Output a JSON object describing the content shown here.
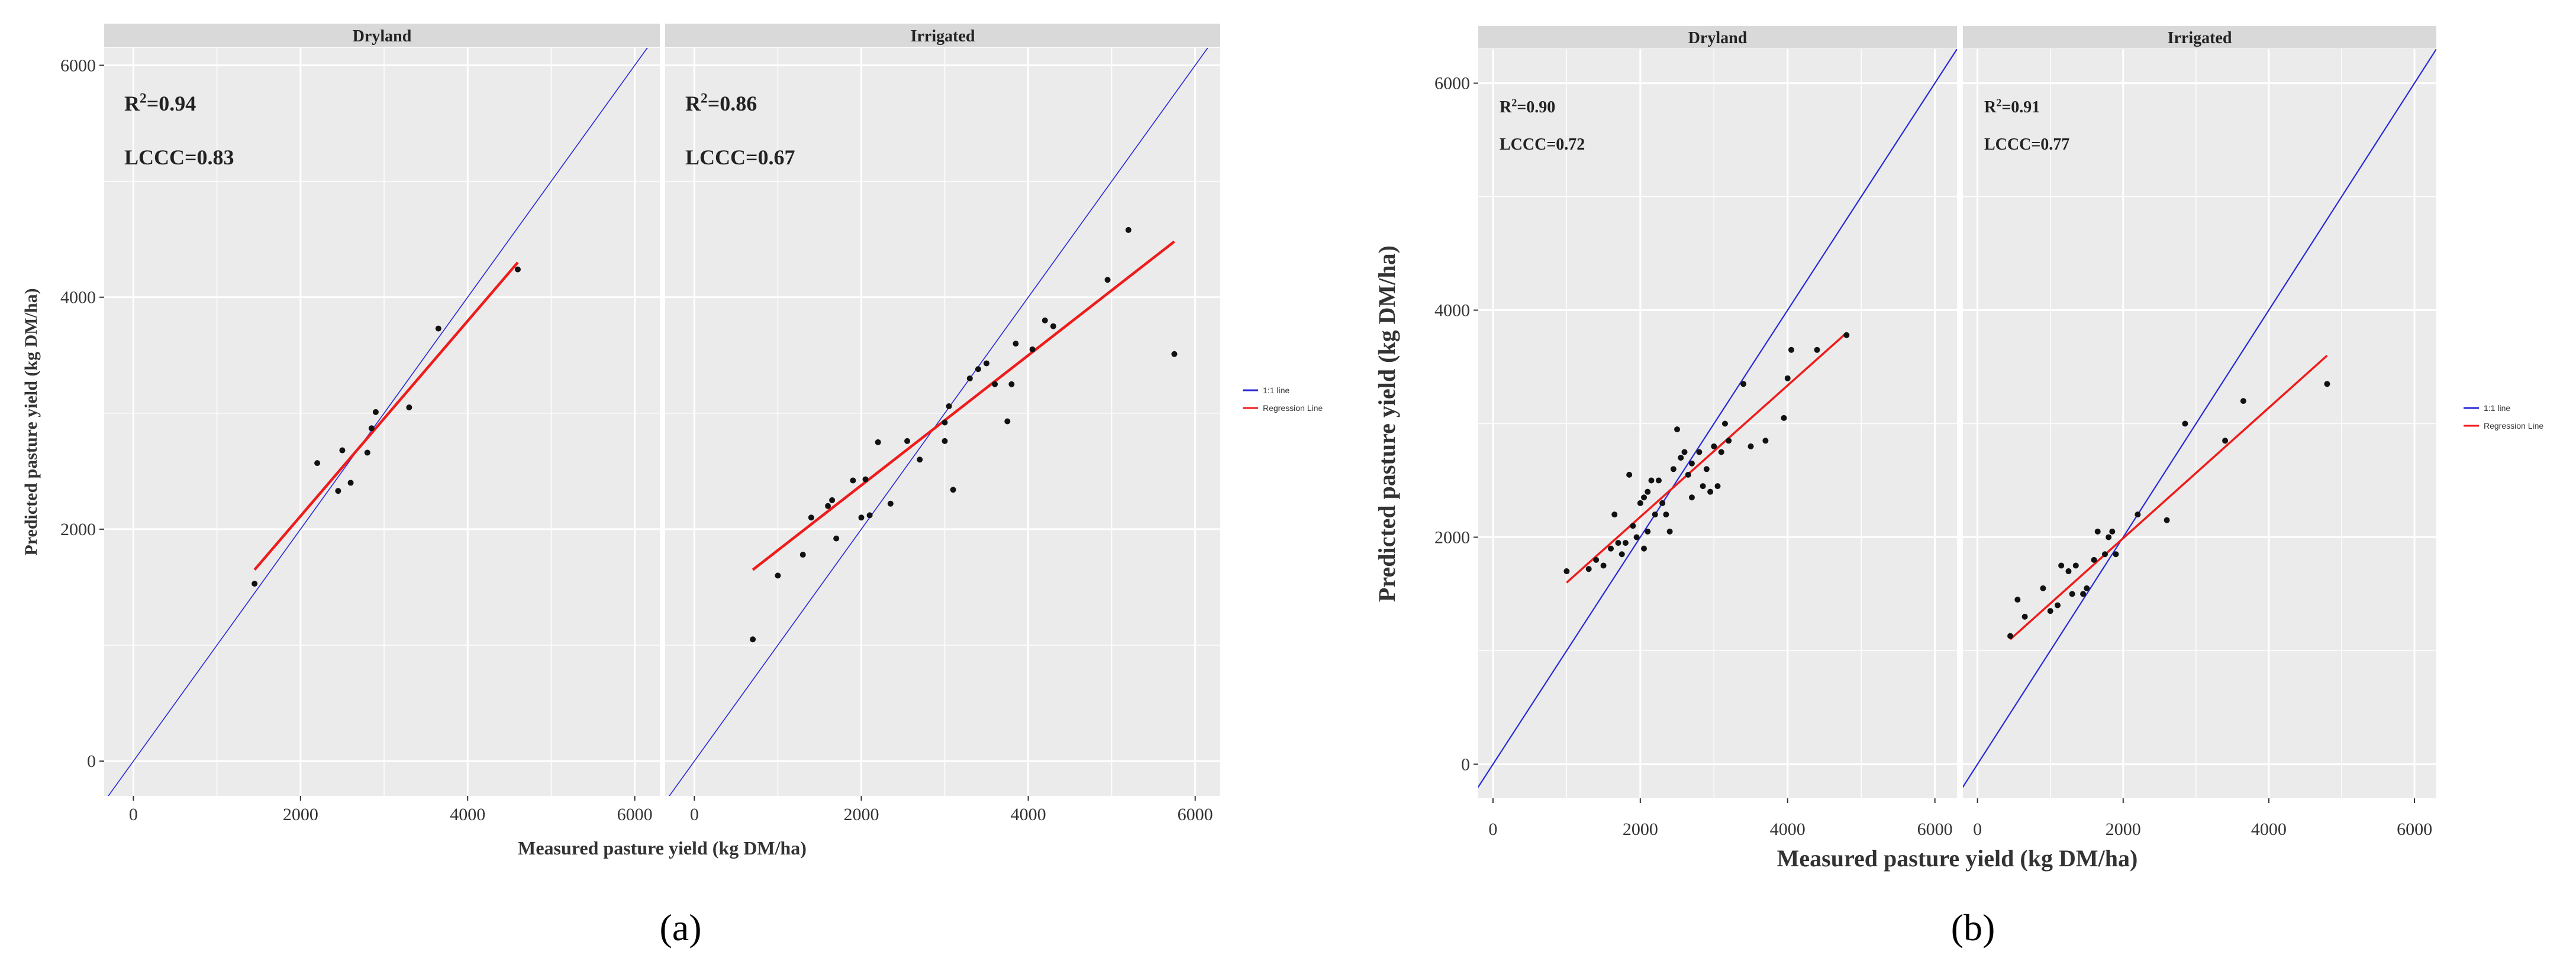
{
  "colors": {
    "panel_bg": "#ebebeb",
    "strip_bg": "#d9d9d9",
    "grid": "#ffffff",
    "identity_line": "#2a2ad6",
    "regression_line": "#ee1c1c",
    "points": "#111111"
  },
  "panel_labels": [
    "(a)",
    "(b)"
  ],
  "chart_data": [
    {
      "type": "scatter",
      "figure": "(a)",
      "xlabel": "Measured pasture yield (kg DM/ha)",
      "ylabel": "Predicted pasture yield (kg DM/ha)",
      "xlim": [
        -350,
        6300
      ],
      "ylim": [
        -300,
        6150
      ],
      "xticks": [
        "0",
        "2000",
        "4000",
        "6000"
      ],
      "yticks": [
        "0",
        "2000",
        "4000",
        "6000"
      ],
      "legend": {
        "position": "right",
        "items": [
          {
            "label": "1:1 line",
            "color": "#2a2ad6"
          },
          {
            "label": "Regression Line",
            "color": "#ee1c1c"
          }
        ]
      },
      "facets": [
        {
          "label": "Dryland",
          "r2_base": "R",
          "r2_sup": "2",
          "r2_value": "=0.94",
          "lccc": "LCCC=0.83",
          "regression": {
            "x0": 1450,
            "y0": 1650,
            "x1": 4600,
            "y1": 4300
          },
          "points": [
            {
              "x": 1450,
              "y": 1530
            },
            {
              "x": 2200,
              "y": 2570
            },
            {
              "x": 2450,
              "y": 2330
            },
            {
              "x": 2500,
              "y": 2680
            },
            {
              "x": 2600,
              "y": 2400
            },
            {
              "x": 2800,
              "y": 2660
            },
            {
              "x": 2850,
              "y": 2870
            },
            {
              "x": 2900,
              "y": 3010
            },
            {
              "x": 3300,
              "y": 3050
            },
            {
              "x": 3650,
              "y": 3730
            },
            {
              "x": 4600,
              "y": 4240
            }
          ]
        },
        {
          "label": "Irrigated",
          "r2_base": "R",
          "r2_sup": "2",
          "r2_value": "=0.86",
          "lccc": "LCCC=0.67",
          "regression": {
            "x0": 700,
            "y0": 1650,
            "x1": 5750,
            "y1": 4480
          },
          "points": [
            {
              "x": 700,
              "y": 1050
            },
            {
              "x": 1000,
              "y": 1600
            },
            {
              "x": 1300,
              "y": 1780
            },
            {
              "x": 1400,
              "y": 2100
            },
            {
              "x": 1600,
              "y": 2200
            },
            {
              "x": 1650,
              "y": 2250
            },
            {
              "x": 1700,
              "y": 1920
            },
            {
              "x": 1900,
              "y": 2420
            },
            {
              "x": 2000,
              "y": 2100
            },
            {
              "x": 2050,
              "y": 2430
            },
            {
              "x": 2100,
              "y": 2120
            },
            {
              "x": 2200,
              "y": 2750
            },
            {
              "x": 2350,
              "y": 2220
            },
            {
              "x": 2550,
              "y": 2760
            },
            {
              "x": 2700,
              "y": 2600
            },
            {
              "x": 3000,
              "y": 2760
            },
            {
              "x": 3000,
              "y": 2920
            },
            {
              "x": 3050,
              "y": 3060
            },
            {
              "x": 3100,
              "y": 2340
            },
            {
              "x": 3300,
              "y": 3300
            },
            {
              "x": 3400,
              "y": 3380
            },
            {
              "x": 3500,
              "y": 3430
            },
            {
              "x": 3600,
              "y": 3250
            },
            {
              "x": 3750,
              "y": 2930
            },
            {
              "x": 3800,
              "y": 3250
            },
            {
              "x": 3850,
              "y": 3600
            },
            {
              "x": 4050,
              "y": 3550
            },
            {
              "x": 4200,
              "y": 3800
            },
            {
              "x": 4300,
              "y": 3750
            },
            {
              "x": 4950,
              "y": 4150
            },
            {
              "x": 5200,
              "y": 4580
            },
            {
              "x": 5750,
              "y": 3510
            }
          ]
        }
      ]
    },
    {
      "type": "scatter",
      "figure": "(b)",
      "xlabel": "Measured pasture yield (kg DM/ha)",
      "ylabel": "Predicted pasture yield (kg DM/ha)",
      "xlim": [
        -200,
        6300
      ],
      "ylim": [
        -300,
        6300
      ],
      "xticks": [
        "0",
        "2000",
        "4000",
        "6000"
      ],
      "yticks": [
        "0",
        "2000",
        "4000",
        "6000"
      ],
      "legend": {
        "position": "right",
        "items": [
          {
            "label": "1:1 line",
            "color": "#2a2ad6"
          },
          {
            "label": "Regression Line",
            "color": "#ee1c1c"
          }
        ]
      },
      "facets": [
        {
          "label": "Dryland",
          "r2_base": "R",
          "r2_sup": "2",
          "r2_value": "=0.90",
          "lccc": "LCCC=0.72",
          "regression": {
            "x0": 1000,
            "y0": 1600,
            "x1": 4800,
            "y1": 3800
          },
          "points": [
            {
              "x": 1000,
              "y": 1700
            },
            {
              "x": 1300,
              "y": 1720
            },
            {
              "x": 1400,
              "y": 1800
            },
            {
              "x": 1500,
              "y": 1750
            },
            {
              "x": 1600,
              "y": 1900
            },
            {
              "x": 1650,
              "y": 2200
            },
            {
              "x": 1700,
              "y": 1950
            },
            {
              "x": 1750,
              "y": 1850
            },
            {
              "x": 1800,
              "y": 1950
            },
            {
              "x": 1850,
              "y": 2550
            },
            {
              "x": 1900,
              "y": 2100
            },
            {
              "x": 1950,
              "y": 2000
            },
            {
              "x": 2000,
              "y": 2300
            },
            {
              "x": 2050,
              "y": 1900
            },
            {
              "x": 2050,
              "y": 2350
            },
            {
              "x": 2100,
              "y": 2400
            },
            {
              "x": 2100,
              "y": 2050
            },
            {
              "x": 2150,
              "y": 2500
            },
            {
              "x": 2200,
              "y": 2200
            },
            {
              "x": 2250,
              "y": 2500
            },
            {
              "x": 2300,
              "y": 2300
            },
            {
              "x": 2350,
              "y": 2200
            },
            {
              "x": 2400,
              "y": 2050
            },
            {
              "x": 2450,
              "y": 2600
            },
            {
              "x": 2500,
              "y": 2950
            },
            {
              "x": 2550,
              "y": 2700
            },
            {
              "x": 2600,
              "y": 2750
            },
            {
              "x": 2650,
              "y": 2550
            },
            {
              "x": 2700,
              "y": 2350
            },
            {
              "x": 2700,
              "y": 2650
            },
            {
              "x": 2800,
              "y": 2750
            },
            {
              "x": 2850,
              "y": 2450
            },
            {
              "x": 2900,
              "y": 2600
            },
            {
              "x": 2950,
              "y": 2400
            },
            {
              "x": 3000,
              "y": 2800
            },
            {
              "x": 3050,
              "y": 2450
            },
            {
              "x": 3100,
              "y": 2750
            },
            {
              "x": 3150,
              "y": 3000
            },
            {
              "x": 3200,
              "y": 2850
            },
            {
              "x": 3400,
              "y": 3350
            },
            {
              "x": 3500,
              "y": 2800
            },
            {
              "x": 3700,
              "y": 2850
            },
            {
              "x": 3950,
              "y": 3050
            },
            {
              "x": 4000,
              "y": 3400
            },
            {
              "x": 4050,
              "y": 3650
            },
            {
              "x": 4400,
              "y": 3650
            },
            {
              "x": 4800,
              "y": 3780
            }
          ]
        },
        {
          "label": "Irrigated",
          "r2_base": "R",
          "r2_sup": "2",
          "r2_value": "=0.91",
          "lccc": "LCCC=0.77",
          "regression": {
            "x0": 450,
            "y0": 1100,
            "x1": 4800,
            "y1": 3600
          },
          "points": [
            {
              "x": 450,
              "y": 1130
            },
            {
              "x": 550,
              "y": 1450
            },
            {
              "x": 650,
              "y": 1300
            },
            {
              "x": 900,
              "y": 1550
            },
            {
              "x": 1000,
              "y": 1350
            },
            {
              "x": 1100,
              "y": 1400
            },
            {
              "x": 1150,
              "y": 1750
            },
            {
              "x": 1250,
              "y": 1700
            },
            {
              "x": 1300,
              "y": 1500
            },
            {
              "x": 1350,
              "y": 1750
            },
            {
              "x": 1450,
              "y": 1500
            },
            {
              "x": 1500,
              "y": 1550
            },
            {
              "x": 1600,
              "y": 1800
            },
            {
              "x": 1650,
              "y": 2050
            },
            {
              "x": 1750,
              "y": 1850
            },
            {
              "x": 1800,
              "y": 2000
            },
            {
              "x": 1850,
              "y": 2050
            },
            {
              "x": 1900,
              "y": 1850
            },
            {
              "x": 2200,
              "y": 2200
            },
            {
              "x": 2600,
              "y": 2150
            },
            {
              "x": 2850,
              "y": 3000
            },
            {
              "x": 3400,
              "y": 2850
            },
            {
              "x": 3650,
              "y": 3200
            },
            {
              "x": 4800,
              "y": 3350
            }
          ]
        }
      ]
    }
  ]
}
